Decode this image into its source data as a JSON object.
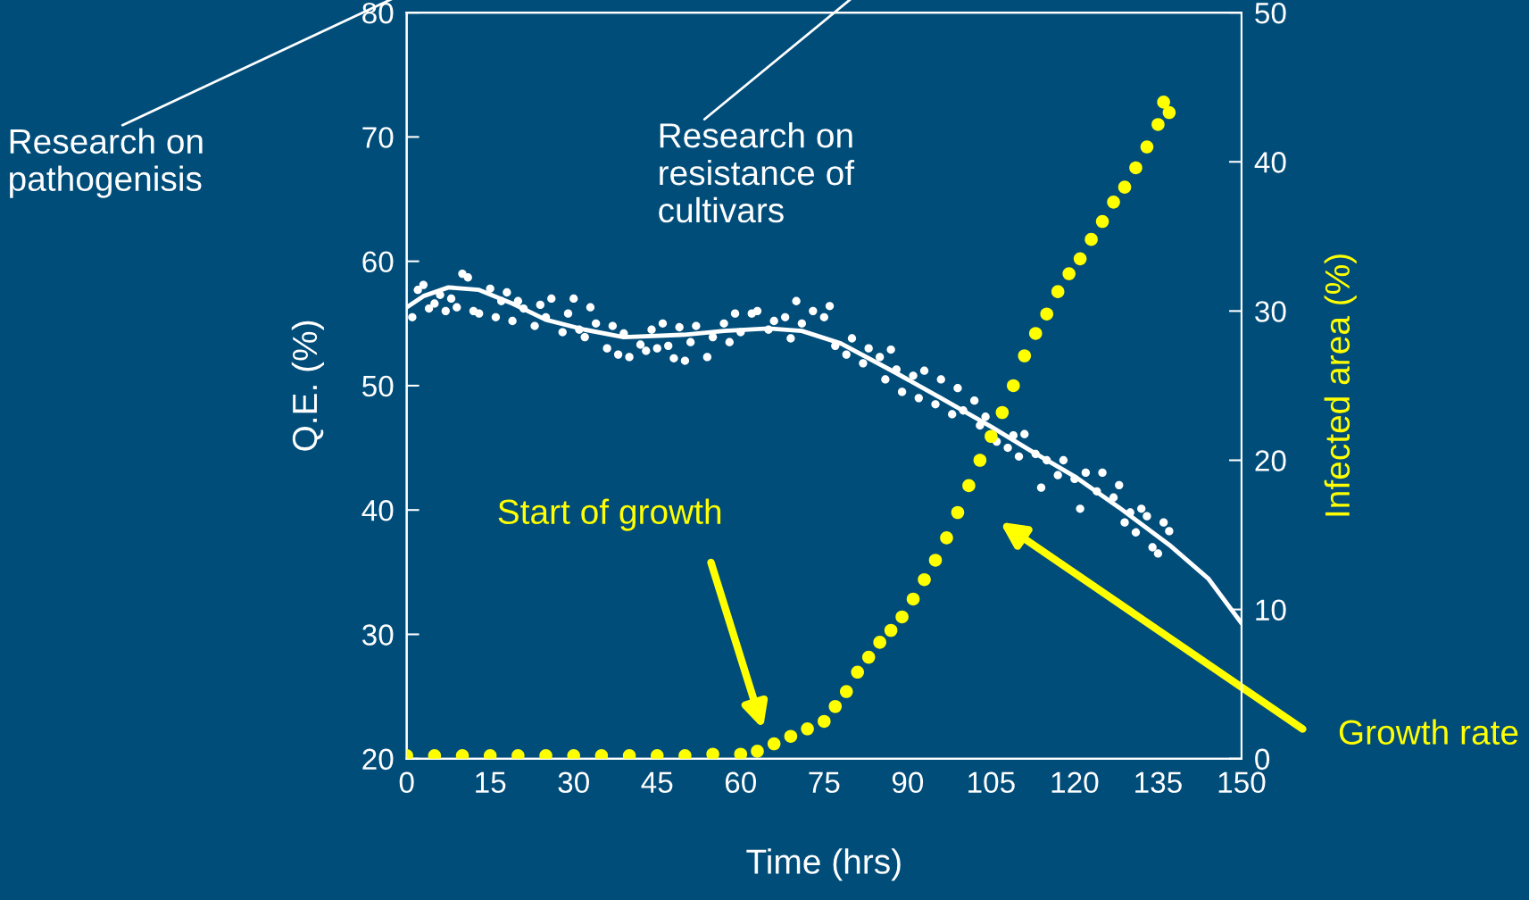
{
  "chart_data": {
    "type": "scatter",
    "xlabel": "Time (hrs)",
    "ylabel": "Q.E. (%)",
    "y2label": "Infected area (%)",
    "xlim": [
      0,
      150
    ],
    "xticks": [
      0,
      15,
      30,
      45,
      60,
      75,
      90,
      105,
      120,
      135,
      150
    ],
    "ylim": [
      20,
      80
    ],
    "yticks": [
      20,
      30,
      40,
      50,
      60,
      70,
      80
    ],
    "y2lim": [
      0,
      50
    ],
    "y2ticks": [
      0,
      10,
      20,
      30,
      40,
      50
    ],
    "grid": false,
    "legend": false,
    "marker": "circle",
    "series": [
      {
        "color": "#ffffff",
        "x": [
          1,
          2,
          3,
          4,
          5,
          6,
          7,
          8,
          9,
          10,
          11,
          12,
          13,
          15,
          16,
          17,
          18,
          19,
          20,
          21,
          23,
          24,
          25,
          26,
          28,
          29,
          30,
          31,
          32,
          33,
          34,
          36,
          37,
          38,
          39,
          40,
          42,
          43,
          44,
          45,
          46,
          47,
          48,
          49,
          50,
          51,
          52,
          54,
          55,
          57,
          58,
          59,
          60,
          62,
          63,
          65,
          66,
          68,
          69,
          70,
          71,
          73,
          75,
          76,
          77,
          79,
          80,
          82,
          83,
          85,
          86,
          87,
          88,
          89,
          91,
          92,
          93,
          95,
          96,
          98,
          99,
          100,
          102,
          103,
          104,
          106,
          108,
          109,
          110,
          111,
          113,
          114,
          115,
          117,
          118,
          120,
          121,
          122,
          124,
          125,
          127,
          128,
          129,
          130,
          131,
          132,
          133,
          134,
          135,
          136,
          137
        ],
        "values": [
          55.5,
          57.7,
          58.1,
          56.2,
          56.6,
          57.3,
          56.0,
          57.0,
          56.3,
          59.0,
          58.7,
          56.0,
          55.8,
          57.8,
          55.5,
          56.8,
          57.5,
          55.2,
          56.8,
          56.2,
          54.8,
          56.5,
          55.5,
          57.0,
          54.3,
          55.8,
          57.0,
          54.5,
          53.9,
          56.3,
          55.0,
          53.0,
          54.8,
          52.5,
          54.2,
          52.3,
          53.3,
          52.8,
          54.5,
          53.0,
          55.0,
          53.2,
          52.2,
          54.7,
          52.0,
          53.5,
          54.8,
          52.3,
          53.9,
          55.0,
          53.5,
          55.8,
          54.3,
          55.8,
          56.0,
          54.5,
          55.2,
          55.5,
          53.8,
          56.8,
          55.0,
          56.0,
          55.5,
          56.4,
          53.2,
          52.5,
          53.8,
          51.8,
          53.0,
          52.3,
          50.5,
          52.9,
          51.3,
          49.5,
          50.8,
          49.0,
          51.2,
          48.5,
          50.5,
          47.7,
          49.8,
          48.0,
          48.8,
          46.8,
          47.5,
          45.5,
          45.0,
          46.0,
          44.3,
          46.1,
          44.5,
          41.8,
          44.0,
          42.8,
          44.0,
          42.5,
          40.1,
          43.0,
          41.5,
          43.0,
          41.0,
          42.0,
          39.0,
          39.8,
          38.2,
          40.1,
          39.5,
          37.0,
          36.5,
          39.0,
          38.3
        ]
      },
      {
        "type": "line",
        "color": "#ffffff",
        "marker": "none",
        "line_style": "solid",
        "x": [
          0,
          3,
          7.5,
          13,
          19,
          25,
          32,
          39,
          50,
          57,
          65,
          71,
          78,
          88,
          96,
          105,
          112,
          120,
          128,
          137,
          144,
          150
        ],
        "values": [
          56.3,
          57.2,
          57.9,
          57.7,
          56.6,
          55.3,
          54.5,
          53.9,
          54.1,
          54.4,
          54.6,
          54.4,
          53.4,
          51.0,
          49.0,
          46.7,
          44.8,
          42.7,
          40.2,
          37.2,
          34.5,
          30.9
        ]
      },
      {
        "axis": "y2",
        "color": "#ffff00",
        "x": [
          0,
          5,
          10,
          15,
          20,
          25,
          30,
          35,
          40,
          45,
          50,
          55,
          60,
          63,
          66,
          69,
          72,
          75,
          77,
          79,
          81,
          83,
          85,
          87,
          89,
          91,
          93,
          95,
          97,
          99,
          101,
          103,
          105,
          107,
          109,
          111,
          113,
          115,
          117,
          119,
          121,
          123,
          125,
          127,
          129,
          131,
          133,
          135,
          136,
          137
        ],
        "values": [
          0.2,
          0.2,
          0.2,
          0.2,
          0.2,
          0.2,
          0.2,
          0.2,
          0.2,
          0.2,
          0.2,
          0.3,
          0.3,
          0.5,
          1.0,
          1.5,
          2.0,
          2.5,
          3.5,
          4.5,
          5.8,
          6.8,
          7.8,
          8.6,
          9.5,
          10.7,
          12.0,
          13.3,
          14.8,
          16.5,
          18.3,
          20.0,
          21.6,
          23.2,
          25.0,
          27.0,
          28.5,
          29.8,
          31.3,
          32.5,
          33.5,
          34.8,
          36.0,
          37.3,
          38.3,
          39.6,
          41.0,
          42.5,
          44.0,
          43.3
        ]
      }
    ],
    "annotations": [
      "Research on\npathogenisis",
      "Research on\nresistance of\ncultivars",
      "Start of growth",
      "Growth rate"
    ]
  }
}
